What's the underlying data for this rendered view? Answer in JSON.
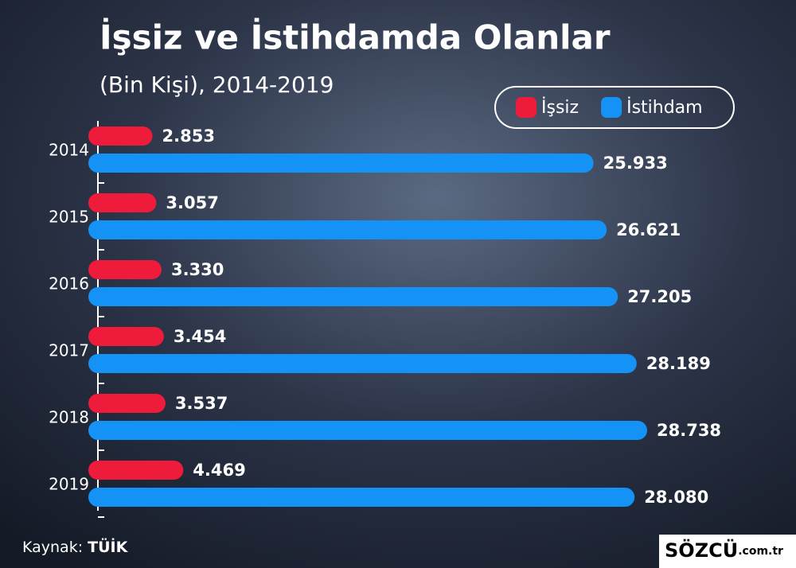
{
  "chart_data": {
    "type": "bar",
    "orientation": "horizontal",
    "title": "İşsiz ve İstihdamda Olanlar",
    "subtitle": "(Bin Kişi), 2014-2019",
    "categories": [
      "2014",
      "2015",
      "2016",
      "2017",
      "2018",
      "2019"
    ],
    "series": [
      {
        "name": "İşsiz",
        "color": "#ee1b3a",
        "values": [
          2853,
          3057,
          3330,
          3454,
          3537,
          4469
        ],
        "value_labels": [
          "2.853",
          "3.057",
          "3.330",
          "3.454",
          "3.537",
          "4.469"
        ]
      },
      {
        "name": "İstihdam",
        "color": "#1592f5",
        "values": [
          25933,
          26621,
          27205,
          28189,
          28738,
          28080
        ],
        "value_labels": [
          "25.933",
          "26.621",
          "27.205",
          "28.189",
          "28.738",
          "28.080"
        ]
      }
    ],
    "legend": "top-right",
    "source_label": "Kaynak:",
    "source": "TÜİK",
    "logo": "SÖZCÜ",
    "logo_domain": ".com.tr"
  }
}
